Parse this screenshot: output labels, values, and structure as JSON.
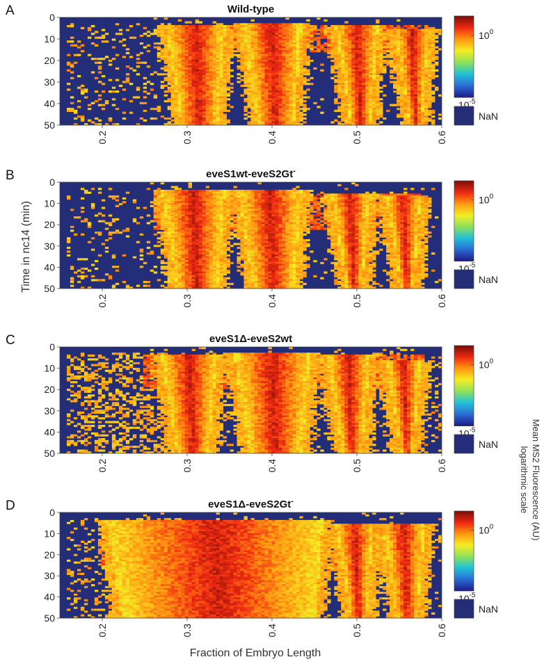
{
  "figure": {
    "shared_ylabel": "Time in nc14 (min)",
    "shared_xlabel": "Fraction of Embryo Length",
    "colorbar_title_line1": "Mean MS2 Fluorescence (AU)",
    "colorbar_title_line2": "logarithmic scale"
  },
  "colors": {
    "nan": "#242e78",
    "colormap": [
      "#1f1f8c",
      "#2a6fd6",
      "#22c3d6",
      "#8fe05a",
      "#f4ee24",
      "#ff9a12",
      "#f02a12",
      "#7e0f0a"
    ]
  },
  "chart_data": [
    {
      "type": "heatmap",
      "panel": "A",
      "title": "Wild-type",
      "title_sup": "",
      "x_range": [
        0.15,
        0.6
      ],
      "y_range": [
        0,
        50
      ],
      "y_reversed": true,
      "x_ticks": [
        0.2,
        0.3,
        0.4,
        0.5,
        0.6
      ],
      "x_tick_labels": [
        "0.2",
        "0.3",
        "0.4",
        "0.5",
        "0.6"
      ],
      "y_ticks": [
        0,
        10,
        20,
        30,
        40,
        50
      ],
      "y_tick_labels": [
        "0",
        "10",
        "20",
        "30",
        "40",
        "50"
      ],
      "colorbar": {
        "scale": "log",
        "max_label": "10",
        "max_exp": "0",
        "min_label": "10",
        "min_exp": "-5",
        "nan_label": "NaN"
      },
      "stripes": [
        {
          "x_start": 0.275,
          "x_end": 0.345,
          "t_start": 5
        },
        {
          "x_start": 0.365,
          "x_end": 0.435,
          "t_start": 4
        },
        {
          "x_start": 0.475,
          "x_end": 0.525,
          "t_start": 5
        },
        {
          "x_start": 0.545,
          "x_end": 0.585,
          "t_start": 6
        }
      ],
      "early_band": {
        "t_start": 4,
        "t_end": 16,
        "x_start": 0.28,
        "x_end": 0.59
      },
      "noise_level": 0.12,
      "seed": 11
    },
    {
      "type": "heatmap",
      "panel": "B",
      "title": "eveS1wt-eveS2Gt",
      "title_sup": "-",
      "x_range": [
        0.15,
        0.6
      ],
      "y_range": [
        0,
        50
      ],
      "y_reversed": true,
      "x_ticks": [
        0.2,
        0.3,
        0.4,
        0.5,
        0.6
      ],
      "x_tick_labels": [
        "0.2",
        "0.3",
        "0.4",
        "0.5",
        "0.6"
      ],
      "y_ticks": [
        0,
        10,
        20,
        30,
        40,
        50
      ],
      "y_tick_labels": [
        "0",
        "10",
        "20",
        "30",
        "40",
        "50"
      ],
      "colorbar": {
        "scale": "log",
        "max_label": "10",
        "max_exp": "0",
        "min_label": "10",
        "min_exp": "-5",
        "nan_label": "NaN"
      },
      "stripes": [
        {
          "x_start": 0.27,
          "x_end": 0.345,
          "t_start": 5
        },
        {
          "x_start": 0.36,
          "x_end": 0.435,
          "t_start": 5
        },
        {
          "x_start": 0.47,
          "x_end": 0.515,
          "t_start": 6
        },
        {
          "x_start": 0.535,
          "x_end": 0.575,
          "t_start": 7
        }
      ],
      "early_band": {
        "t_start": 5,
        "t_end": 22,
        "x_start": 0.26,
        "x_end": 0.58
      },
      "noise_level": 0.1,
      "seed": 23
    },
    {
      "type": "heatmap",
      "panel": "C",
      "title": "eveS1Δ-eveS2wt",
      "title_sup": "",
      "x_range": [
        0.15,
        0.6
      ],
      "y_range": [
        0,
        50
      ],
      "y_reversed": true,
      "x_ticks": [
        0.2,
        0.3,
        0.4,
        0.5,
        0.6
      ],
      "x_tick_labels": [
        "0.2",
        "0.3",
        "0.4",
        "0.5",
        "0.6"
      ],
      "y_ticks": [
        0,
        10,
        20,
        30,
        40,
        50
      ],
      "y_tick_labels": [
        "0",
        "10",
        "20",
        "30",
        "40",
        "50"
      ],
      "colorbar": {
        "scale": "log",
        "max_label": "10",
        "max_exp": "0",
        "min_label": "10",
        "min_exp": "-5",
        "nan_label": "NaN"
      },
      "stripes": [
        {
          "x_start": 0.27,
          "x_end": 0.335,
          "t_start": 5
        },
        {
          "x_start": 0.355,
          "x_end": 0.445,
          "t_start": 4
        },
        {
          "x_start": 0.465,
          "x_end": 0.515,
          "t_start": 5
        },
        {
          "x_start": 0.535,
          "x_end": 0.575,
          "t_start": 7
        }
      ],
      "early_band": {
        "t_start": 4,
        "t_end": 20,
        "x_start": 0.25,
        "x_end": 0.58
      },
      "noise_level": 0.32,
      "seed": 37
    },
    {
      "type": "heatmap",
      "panel": "D",
      "title": "eveS1Δ-eveS2Gt",
      "title_sup": "-",
      "x_range": [
        0.15,
        0.6
      ],
      "y_range": [
        0,
        50
      ],
      "y_reversed": true,
      "x_ticks": [
        0.2,
        0.3,
        0.4,
        0.5,
        0.6
      ],
      "x_tick_labels": [
        "0.2",
        "0.3",
        "0.4",
        "0.5",
        "0.6"
      ],
      "y_ticks": [
        0,
        10,
        20,
        30,
        40,
        50
      ],
      "y_tick_labels": [
        "0",
        "10",
        "20",
        "30",
        "40",
        "50"
      ],
      "colorbar": {
        "scale": "log",
        "max_label": "10",
        "max_exp": "0",
        "min_label": "10",
        "min_exp": "-5",
        "nan_label": "NaN"
      },
      "stripes": [
        {
          "x_start": 0.205,
          "x_end": 0.46,
          "t_start": 5
        },
        {
          "x_start": 0.475,
          "x_end": 0.52,
          "t_start": 6
        },
        {
          "x_start": 0.53,
          "x_end": 0.58,
          "t_start": 6
        }
      ],
      "early_band": {
        "t_start": 5,
        "t_end": 28,
        "x_start": 0.2,
        "x_end": 0.58
      },
      "noise_level": 0.14,
      "seed": 53
    }
  ]
}
